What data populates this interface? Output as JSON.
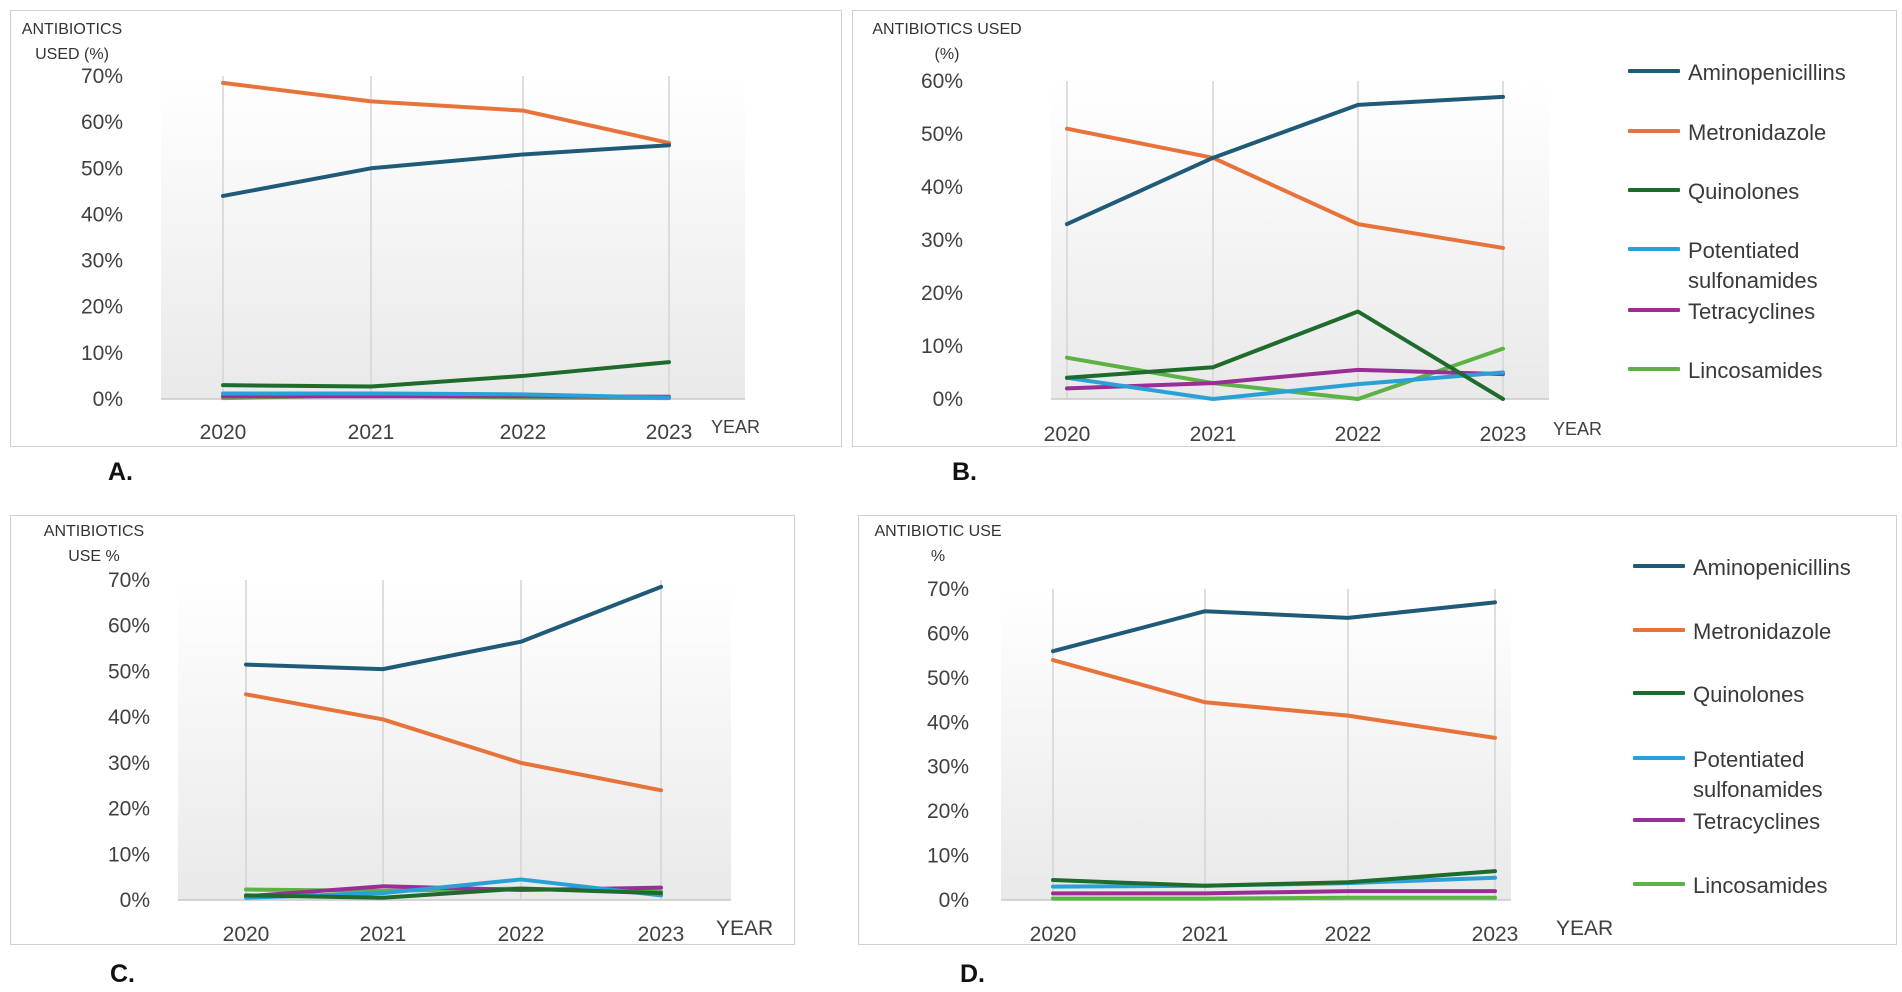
{
  "colors": {
    "Aminopenicillins": "#1f5b78",
    "Metronidazole": "#e8733a",
    "Quinolones": "#1f6b2c",
    "Potentiated sulfonamides": "#2aa1d6",
    "Tetracyclines": "#9a2e96",
    "Lincosamides": "#5cb245"
  },
  "legend": [
    "Aminopenicillins",
    "Metronidazole",
    "Quinolones",
    "Potentiated sulfonamides",
    "Tetracyclines",
    "Lincosamides"
  ],
  "chart_data": [
    {
      "panel": "A.",
      "type": "line",
      "ylabel_line1": "ANTIBIOTICS",
      "ylabel_line2": "USED (%)",
      "xlabel": "YEAR",
      "categories": [
        "2020",
        "2021",
        "2022",
        "2023"
      ],
      "ylim": [
        0,
        70
      ],
      "yticks": [
        "0%",
        "10%",
        "20%",
        "30%",
        "40%",
        "50%",
        "60%",
        "70%"
      ],
      "series": [
        {
          "name": "Aminopenicillins",
          "values": [
            44,
            50,
            53,
            55
          ]
        },
        {
          "name": "Metronidazole",
          "values": [
            68.5,
            64.5,
            62.5,
            55.5
          ]
        },
        {
          "name": "Quinolones",
          "values": [
            3,
            2.7,
            5,
            8
          ]
        },
        {
          "name": "Potentiated sulfonamides",
          "values": [
            1.2,
            1.2,
            1,
            0.3
          ]
        },
        {
          "name": "Tetracyclines",
          "values": [
            0.6,
            0.6,
            0.6,
            0.5
          ]
        },
        {
          "name": "Lincosamides",
          "values": [
            0.2,
            0.8,
            0.3,
            0.2
          ]
        }
      ]
    },
    {
      "panel": "B.",
      "type": "line",
      "ylabel_line1": "ANTIBIOTICS USED",
      "ylabel_line2": "(%)",
      "xlabel": "YEAR",
      "categories": [
        "2020",
        "2021",
        "2022",
        "2023"
      ],
      "ylim": [
        0,
        60
      ],
      "yticks": [
        "0%",
        "10%",
        "20%",
        "30%",
        "40%",
        "50%",
        "60%"
      ],
      "series": [
        {
          "name": "Aminopenicillins",
          "values": [
            33,
            45.5,
            55.5,
            57
          ]
        },
        {
          "name": "Metronidazole",
          "values": [
            51,
            45.5,
            33,
            28.5
          ]
        },
        {
          "name": "Quinolones",
          "values": [
            4,
            6,
            16.5,
            0
          ]
        },
        {
          "name": "Potentiated sulfonamides",
          "values": [
            4,
            0,
            2.8,
            5
          ]
        },
        {
          "name": "Tetracyclines",
          "values": [
            2,
            3,
            5.5,
            4.7
          ]
        },
        {
          "name": "Lincosamides",
          "values": [
            7.8,
            3,
            0,
            9.5
          ]
        }
      ]
    },
    {
      "panel": "C.",
      "type": "line",
      "ylabel_line1": "ANTIBIOTICS",
      "ylabel_line2": "USE %",
      "xlabel": "YEAR",
      "categories": [
        "2020",
        "2021",
        "2022",
        "2023"
      ],
      "ylim": [
        0,
        70
      ],
      "yticks": [
        "0%",
        "10%",
        "20%",
        "30%",
        "40%",
        "50%",
        "60%",
        "70%"
      ],
      "series": [
        {
          "name": "Aminopenicillins",
          "values": [
            51.5,
            50.5,
            56.5,
            68.5
          ]
        },
        {
          "name": "Metronidazole",
          "values": [
            45,
            39.5,
            30,
            24
          ]
        },
        {
          "name": "Quinolones",
          "values": [
            1,
            0.5,
            2.5,
            1.5
          ]
        },
        {
          "name": "Potentiated sulfonamides",
          "values": [
            0.5,
            1.5,
            4.5,
            1
          ]
        },
        {
          "name": "Tetracyclines",
          "values": [
            0.8,
            3,
            2.2,
            2.7
          ]
        },
        {
          "name": "Lincosamides",
          "values": [
            2.3,
            2,
            2.5,
            1.8
          ]
        }
      ]
    },
    {
      "panel": "D.",
      "type": "line",
      "ylabel_line1": "ANTIBIOTIC USE",
      "ylabel_line2": "%",
      "xlabel": "YEAR",
      "categories": [
        "2020",
        "2021",
        "2022",
        "2023"
      ],
      "ylim": [
        0,
        70
      ],
      "yticks": [
        "0%",
        "10%",
        "20%",
        "30%",
        "40%",
        "50%",
        "60%",
        "70%"
      ],
      "series": [
        {
          "name": "Aminopenicillins",
          "values": [
            56,
            65,
            63.5,
            67
          ]
        },
        {
          "name": "Metronidazole",
          "values": [
            54,
            44.5,
            41.5,
            36.5
          ]
        },
        {
          "name": "Quinolones",
          "values": [
            4.5,
            3.2,
            4,
            6.5
          ]
        },
        {
          "name": "Potentiated sulfonamides",
          "values": [
            3,
            3.2,
            3.8,
            5
          ]
        },
        {
          "name": "Tetracyclines",
          "values": [
            1.5,
            1.5,
            2,
            2
          ]
        },
        {
          "name": "Lincosamides",
          "values": [
            0.3,
            0.3,
            0.5,
            0.5
          ]
        }
      ]
    }
  ]
}
